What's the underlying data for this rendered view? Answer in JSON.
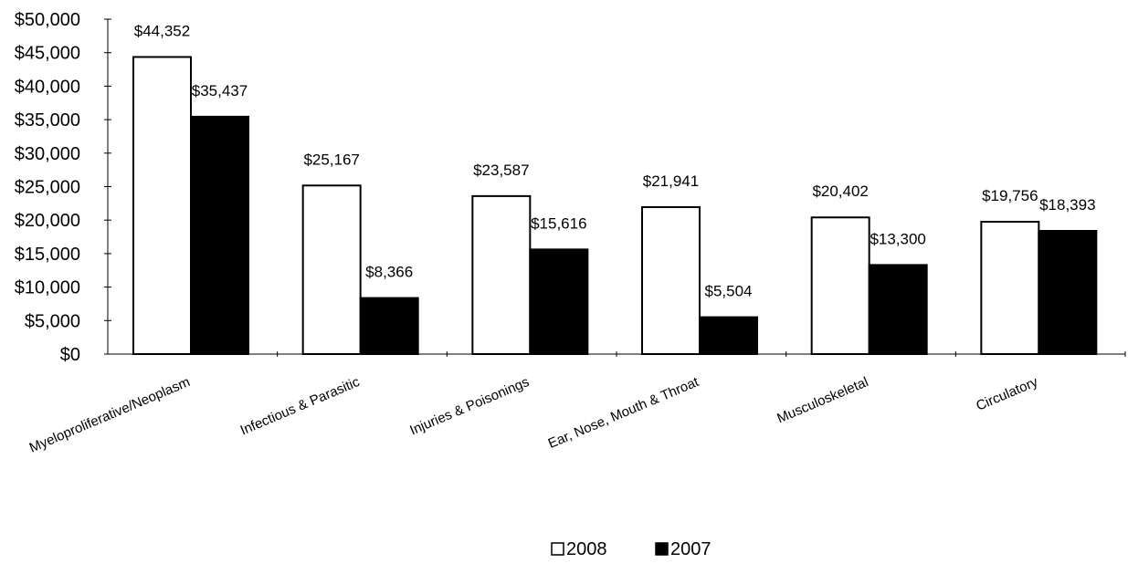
{
  "chart_data": {
    "type": "bar",
    "categories": [
      "Myeloproliferative/Neoplasm",
      "Infectious & Parasitic",
      "Injuries & Poisonings",
      "Ear, Nose, Mouth & Throat",
      "Musculoskeletal",
      "Circulatory"
    ],
    "series": [
      {
        "name": "2008",
        "values": [
          44352,
          25167,
          23587,
          21941,
          20402,
          19756
        ],
        "labels": [
          "$44,352",
          "$25,167",
          "$23,587",
          "$21,941",
          "$20,402",
          "$19,756"
        ],
        "fill": "#ffffff",
        "stroke": "#000000"
      },
      {
        "name": "2007",
        "values": [
          35437,
          8366,
          15616,
          5504,
          13300,
          18393
        ],
        "labels": [
          "$35,437",
          "$8,366",
          "$15,616",
          "$5,504",
          "$13,300",
          "$18,393"
        ],
        "fill": "#000000",
        "stroke": "#000000"
      }
    ],
    "y_ticks": [
      0,
      5000,
      10000,
      15000,
      20000,
      25000,
      30000,
      35000,
      40000,
      45000,
      50000
    ],
    "y_tick_labels": [
      "$0",
      "$5,000",
      "$10,000",
      "$15,000",
      "$20,000",
      "$25,000",
      "$30,000",
      "$35,000",
      "$40,000",
      "$45,000",
      "$50,000"
    ],
    "ylim": [
      0,
      50000
    ],
    "title": "",
    "xlabel": "",
    "ylabel": "",
    "grid": false,
    "legend_position": "bottom-center"
  }
}
